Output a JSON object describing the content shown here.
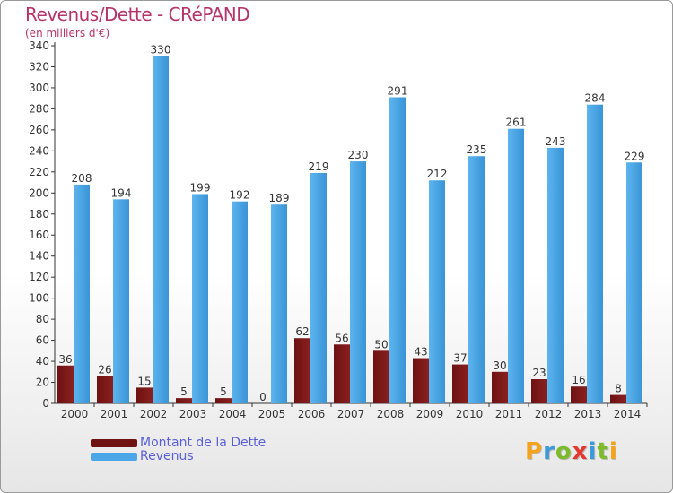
{
  "title": "Revenus/Dette - CRéPAND",
  "subtitle": "(en milliers d'€)",
  "colors": {
    "title": "#b5346b",
    "legend_text": "#5a5fd6",
    "dette": "#6e1212",
    "revenus": "#4aa6e6"
  },
  "logo": {
    "letters": [
      "P",
      "r",
      "o",
      "x",
      "i",
      "t",
      "i"
    ],
    "colors": [
      "#f7a21b",
      "#3c9ad8",
      "#7dbb2d",
      "#e23a2f",
      "#3c9ad8",
      "#7dbb2d",
      "#f7a21b"
    ]
  },
  "chart_data": {
    "type": "bar",
    "categories": [
      "2000",
      "2001",
      "2002",
      "2003",
      "2004",
      "2005",
      "2006",
      "2007",
      "2008",
      "2009",
      "2010",
      "2011",
      "2012",
      "2013",
      "2014"
    ],
    "series": [
      {
        "name": "Montant de la Dette",
        "values": [
          36,
          26,
          15,
          5,
          5,
          0,
          62,
          56,
          50,
          43,
          37,
          30,
          23,
          16,
          8
        ]
      },
      {
        "name": "Revenus",
        "values": [
          208,
          194,
          330,
          199,
          192,
          189,
          219,
          230,
          291,
          212,
          235,
          261,
          243,
          284,
          229
        ]
      }
    ],
    "ylim": [
      0,
      340
    ],
    "yticks": [
      0,
      20,
      40,
      60,
      80,
      100,
      120,
      140,
      160,
      180,
      200,
      220,
      240,
      260,
      280,
      300,
      320,
      340
    ],
    "grid": false,
    "legend": "bottom-left"
  }
}
